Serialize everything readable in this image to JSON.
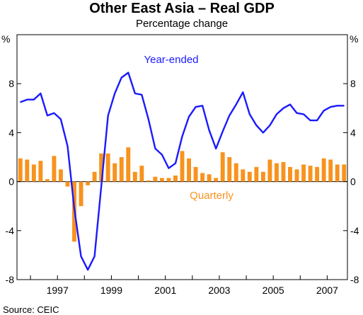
{
  "chart_data": {
    "type": "bar+line",
    "title": "Other East Asia – Real GDP",
    "subtitle": "Percentage change",
    "unit_left": "%",
    "unit_right": "%",
    "source": "Source: CEIC",
    "ylim": [
      -8,
      12
    ],
    "yticks": [
      -8,
      -4,
      0,
      4,
      8
    ],
    "xlim": [
      1995.5,
      2007.75
    ],
    "x_tick_labels": [
      "1997",
      "1999",
      "2001",
      "2003",
      "2005",
      "2007"
    ],
    "x_tick_positions": [
      1996,
      1997,
      1998,
      1999,
      2000,
      2001,
      2002,
      2003,
      2004,
      2005,
      2006,
      2007
    ],
    "x_label_centers": [
      1997.0,
      1999.0,
      2001.0,
      2003.0,
      2005.0,
      2007.0
    ],
    "grid": false,
    "series": [
      {
        "name": "Quarterly",
        "kind": "bar",
        "color": "#f7931e",
        "x": [
          1995.625,
          1995.875,
          1996.125,
          1996.375,
          1996.625,
          1996.875,
          1997.125,
          1997.375,
          1997.625,
          1997.875,
          1998.125,
          1998.375,
          1998.625,
          1998.875,
          1999.125,
          1999.375,
          1999.625,
          1999.875,
          2000.125,
          2000.375,
          2000.625,
          2000.875,
          2001.125,
          2001.375,
          2001.625,
          2001.875,
          2002.125,
          2002.375,
          2002.625,
          2002.875,
          2003.125,
          2003.375,
          2003.625,
          2003.875,
          2004.125,
          2004.375,
          2004.625,
          2004.875,
          2005.125,
          2005.375,
          2005.625,
          2005.875,
          2006.125,
          2006.375,
          2006.625,
          2006.875,
          2007.125,
          2007.375,
          2007.625
        ],
        "values": [
          1.9,
          1.8,
          1.4,
          1.7,
          0.2,
          2.1,
          1.0,
          -0.4,
          -4.9,
          -2.0,
          -0.3,
          0.8,
          2.3,
          2.3,
          1.5,
          2.0,
          2.8,
          0.8,
          1.3,
          0.1,
          0.4,
          0.3,
          0.3,
          0.5,
          2.5,
          1.9,
          1.2,
          0.7,
          0.6,
          0.3,
          2.4,
          2.0,
          1.5,
          1.0,
          0.8,
          1.2,
          0.8,
          1.8,
          1.5,
          1.6,
          1.2,
          1.0,
          1.4,
          1.3,
          1.2,
          1.9,
          1.8,
          1.4,
          1.4
        ]
      },
      {
        "name": "Year-ended",
        "kind": "line",
        "color": "#1a1aff",
        "x": [
          1995.625,
          1995.875,
          1996.125,
          1996.375,
          1996.625,
          1996.875,
          1997.125,
          1997.375,
          1997.625,
          1997.875,
          1998.125,
          1998.375,
          1998.625,
          1998.875,
          1999.125,
          1999.375,
          1999.625,
          1999.875,
          2000.125,
          2000.375,
          2000.625,
          2000.875,
          2001.125,
          2001.375,
          2001.625,
          2001.875,
          2002.125,
          2002.375,
          2002.625,
          2002.875,
          2003.125,
          2003.375,
          2003.625,
          2003.875,
          2004.125,
          2004.375,
          2004.625,
          2004.875,
          2005.125,
          2005.375,
          2005.625,
          2005.875,
          2006.125,
          2006.375,
          2006.625,
          2006.875,
          2007.125,
          2007.375,
          2007.625
        ],
        "values": [
          6.5,
          6.7,
          6.7,
          7.2,
          5.4,
          5.6,
          5.1,
          2.9,
          -2.2,
          -6.1,
          -7.2,
          -6.1,
          -0.4,
          5.4,
          7.2,
          8.5,
          8.9,
          7.2,
          7.1,
          5.1,
          2.7,
          2.2,
          1.1,
          1.5,
          3.7,
          5.3,
          6.1,
          6.2,
          4.2,
          2.7,
          4.1,
          5.4,
          6.3,
          7.3,
          5.5,
          4.6,
          4.0,
          4.6,
          5.5,
          6.0,
          6.3,
          5.6,
          5.5,
          5.0,
          5.0,
          5.8,
          6.1,
          6.2,
          6.2
        ]
      }
    ]
  }
}
